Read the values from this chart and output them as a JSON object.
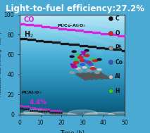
{
  "title": "Light-to-fuel efficiency:27.2%",
  "title_color": "#ffffff",
  "title_fontsize": 8.5,
  "xlim": [
    0,
    50
  ],
  "ylim": [
    0,
    100
  ],
  "xlabel": "Time (h)",
  "ylabel": "Production rate (mmol g⁻¹ min⁻¹)",
  "yticks": [
    0,
    20,
    40,
    60,
    80,
    100
  ],
  "xticks": [
    0,
    10,
    20,
    30,
    40,
    50
  ],
  "co_ptco_x": [
    0,
    1,
    2,
    3,
    4,
    5,
    6,
    7,
    8,
    9,
    10,
    11,
    12,
    13,
    14,
    15,
    16,
    17,
    18,
    19,
    20,
    21,
    22,
    23,
    24,
    25,
    26,
    27,
    28,
    29,
    30,
    31,
    32,
    33,
    34,
    35,
    36,
    37,
    38,
    39,
    40,
    41,
    42,
    43,
    44,
    45,
    46,
    47,
    48,
    49,
    50
  ],
  "co_ptco_y": [
    91,
    91,
    91,
    90,
    90,
    90,
    90,
    89,
    89,
    89,
    89,
    88,
    88,
    88,
    88,
    87,
    87,
    87,
    87,
    86,
    86,
    86,
    86,
    85,
    85,
    85,
    85,
    84,
    84,
    84,
    84,
    83,
    83,
    83,
    83,
    82,
    82,
    82,
    82,
    81,
    81,
    81,
    81,
    80,
    80,
    80,
    80,
    79,
    79,
    79,
    79
  ],
  "h2_ptco_x": [
    0,
    1,
    2,
    3,
    4,
    5,
    6,
    7,
    8,
    9,
    10,
    11,
    12,
    13,
    14,
    15,
    16,
    17,
    18,
    19,
    20,
    21,
    22,
    23,
    24,
    25,
    26,
    27,
    28,
    29,
    30,
    31,
    32,
    33,
    34,
    35,
    36,
    37,
    38,
    39,
    40,
    41,
    42,
    43,
    44,
    45,
    46,
    47,
    48,
    49,
    50
  ],
  "h2_ptco_y": [
    76,
    76,
    76,
    76,
    75,
    75,
    75,
    75,
    74,
    74,
    74,
    74,
    73,
    73,
    73,
    73,
    72,
    72,
    72,
    72,
    71,
    71,
    71,
    71,
    70,
    70,
    70,
    70,
    70,
    69,
    69,
    69,
    69,
    68,
    68,
    68,
    68,
    67,
    67,
    67,
    67,
    66,
    66,
    66,
    66,
    65,
    65,
    65,
    65,
    64,
    64
  ],
  "co_ptalo_x": [
    0,
    1,
    2,
    3,
    4,
    5,
    6,
    7,
    8,
    9,
    10,
    11,
    12,
    13,
    14,
    15,
    16,
    17,
    18,
    19,
    20
  ],
  "co_ptalo_y": [
    9,
    9,
    8,
    8,
    8,
    7,
    7,
    7,
    6,
    6,
    6,
    5,
    5,
    5,
    5,
    4,
    4,
    4,
    4,
    4,
    3
  ],
  "h2_ptalo_x": [
    0,
    1,
    2,
    3,
    4,
    5,
    6,
    7,
    8,
    9,
    10,
    11,
    12,
    13,
    14,
    15,
    16,
    17,
    18,
    19,
    20
  ],
  "h2_ptalo_y": [
    6,
    6,
    5,
    5,
    5,
    4,
    4,
    4,
    4,
    3,
    3,
    3,
    3,
    3,
    3,
    2,
    2,
    2,
    2,
    2,
    2
  ],
  "co_color": "#dd22dd",
  "h2_color": "#1a1a1a",
  "legend_items": [
    "C",
    "O",
    "Pt",
    "Co",
    "Al",
    "H"
  ],
  "legend_colors": [
    "#111111",
    "#dd2222",
    "#999999",
    "#3355cc",
    "#bbbbbb",
    "#33cc33"
  ],
  "bg_colors": [
    "#a8ddf0",
    "#6bc4e8",
    "#4aaad4",
    "#3890c0",
    "#2878a8",
    "#1a6090"
  ],
  "spine_color": "#333333",
  "tick_color": "#111111",
  "axis_label_color": "#111111"
}
